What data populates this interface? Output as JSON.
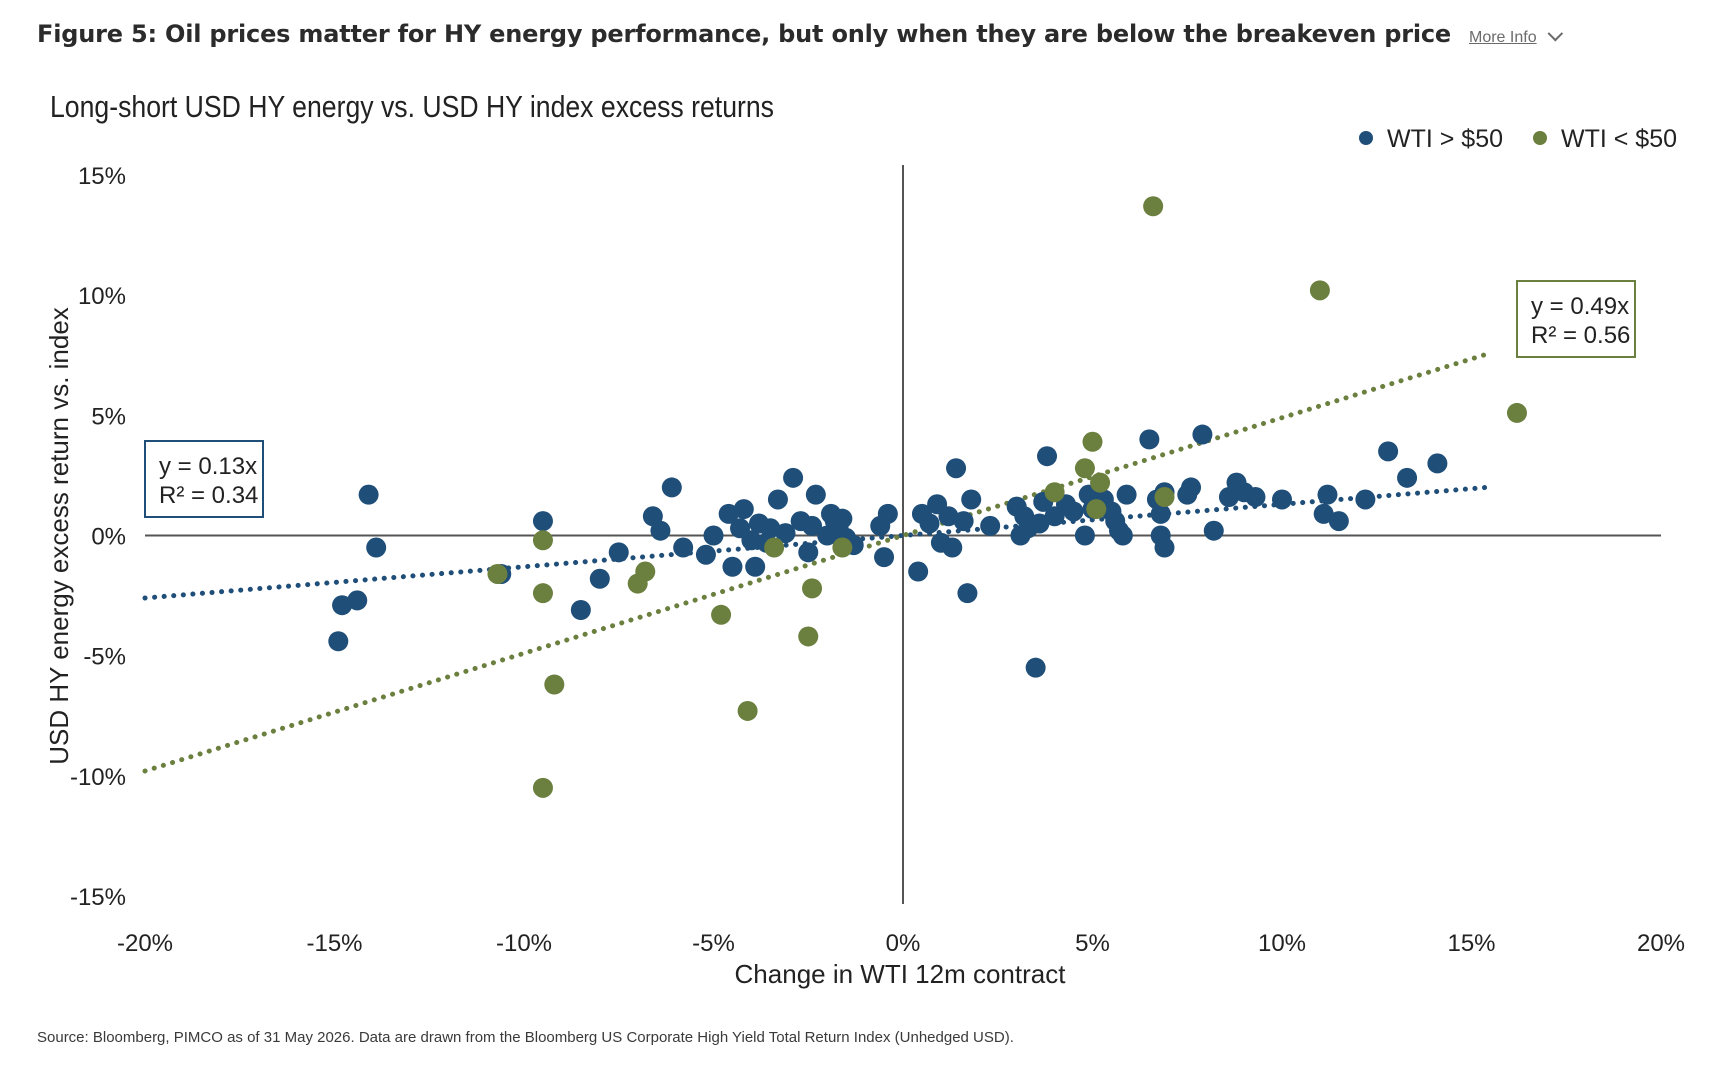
{
  "header": {
    "figure_title": "Figure 5: Oil prices matter for HY energy performance, but only when they are below the breakeven price",
    "more_info_label": "More Info",
    "chevron_icon": "chevron-down-icon"
  },
  "source_note": "Source: Bloomberg, PIMCO as of 31 May 2026. Data are drawn from the Bloomberg US Corporate High Yield Total Return Index (Unhedged USD).",
  "colors": {
    "above_50": "#1f4e79",
    "below_50": "#6b7f3e",
    "axis": "#555555"
  },
  "chart_data": {
    "type": "scatter",
    "title": "Long-short USD HY energy vs. USD HY index excess returns",
    "xlabel": "Change in WTI 12m contract",
    "ylabel": "USD HY energy excess return vs. index",
    "xlim": [
      -20,
      20
    ],
    "ylim": [
      -15,
      15
    ],
    "x_ticks": [
      -20,
      -15,
      -10,
      -5,
      0,
      5,
      10,
      15,
      20
    ],
    "y_ticks": [
      15,
      10,
      5,
      0,
      -5,
      -10,
      -15
    ],
    "x_tick_labels": [
      "-20%",
      "-15%",
      "-10%",
      "-5%",
      "0%",
      "5%",
      "10%",
      "15%",
      "20%"
    ],
    "y_tick_labels": [
      "15%",
      "10%",
      "5%",
      "0%",
      "-5%",
      "-10%",
      "-15%"
    ],
    "grid": false,
    "legend_position": "top-right",
    "series": [
      {
        "name": "WTI > $50",
        "color": "#1f4e79",
        "trendline": {
          "slope": 0.13,
          "x_range": [
            -20,
            15.5
          ]
        },
        "annotation": {
          "lines": [
            "y = 0.13x",
            "R² = 0.34"
          ]
        },
        "points": [
          [
            -14.1,
            1.7
          ],
          [
            -13.9,
            -0.5
          ],
          [
            -14.8,
            -2.9
          ],
          [
            -14.4,
            -2.7
          ],
          [
            -14.9,
            -4.4
          ],
          [
            -10.6,
            -1.6
          ],
          [
            -9.5,
            0.6
          ],
          [
            -8.5,
            -3.1
          ],
          [
            -8.0,
            -1.8
          ],
          [
            -7.5,
            -0.7
          ],
          [
            -6.6,
            0.8
          ],
          [
            -6.4,
            0.2
          ],
          [
            -6.1,
            2.0
          ],
          [
            -5.8,
            -0.5
          ],
          [
            -5.2,
            -0.8
          ],
          [
            -5.0,
            0.0
          ],
          [
            -4.6,
            0.9
          ],
          [
            -4.5,
            -1.3
          ],
          [
            -4.3,
            0.3
          ],
          [
            -4.2,
            1.1
          ],
          [
            -4.0,
            -0.2
          ],
          [
            -3.9,
            -1.3
          ],
          [
            -3.8,
            0.5
          ],
          [
            -3.6,
            -0.3
          ],
          [
            -3.5,
            0.3
          ],
          [
            -3.3,
            1.5
          ],
          [
            -3.1,
            0.1
          ],
          [
            -2.9,
            2.4
          ],
          [
            -2.7,
            0.6
          ],
          [
            -2.5,
            -0.7
          ],
          [
            -2.4,
            0.4
          ],
          [
            -2.3,
            1.7
          ],
          [
            -2.0,
            0.0
          ],
          [
            -1.9,
            0.9
          ],
          [
            -1.8,
            0.6
          ],
          [
            -1.7,
            0.3
          ],
          [
            -1.6,
            0.7
          ],
          [
            -1.5,
            -0.1
          ],
          [
            -1.3,
            -0.4
          ],
          [
            -0.6,
            0.4
          ],
          [
            -0.5,
            -0.9
          ],
          [
            -0.4,
            0.9
          ],
          [
            0.4,
            -1.5
          ],
          [
            0.5,
            0.9
          ],
          [
            0.7,
            0.5
          ],
          [
            0.9,
            1.3
          ],
          [
            1.0,
            -0.3
          ],
          [
            1.2,
            0.8
          ],
          [
            1.3,
            -0.5
          ],
          [
            1.4,
            2.8
          ],
          [
            1.6,
            0.6
          ],
          [
            1.7,
            -2.4
          ],
          [
            1.8,
            1.5
          ],
          [
            2.3,
            0.4
          ],
          [
            3.0,
            1.2
          ],
          [
            3.1,
            0.0
          ],
          [
            3.2,
            0.8
          ],
          [
            3.3,
            0.3
          ],
          [
            3.5,
            -5.5
          ],
          [
            3.6,
            0.5
          ],
          [
            3.7,
            1.4
          ],
          [
            3.8,
            3.3
          ],
          [
            4.0,
            0.8
          ],
          [
            4.3,
            1.3
          ],
          [
            4.5,
            1.0
          ],
          [
            4.8,
            0.0
          ],
          [
            4.9,
            1.7
          ],
          [
            5.0,
            1.1
          ],
          [
            5.3,
            1.5
          ],
          [
            5.5,
            1.0
          ],
          [
            5.6,
            0.6
          ],
          [
            5.7,
            0.2
          ],
          [
            5.8,
            0.0
          ],
          [
            5.9,
            1.7
          ],
          [
            6.5,
            4.0
          ],
          [
            6.7,
            1.5
          ],
          [
            6.8,
            0.9
          ],
          [
            6.8,
            0.0
          ],
          [
            6.9,
            -0.5
          ],
          [
            6.9,
            1.8
          ],
          [
            7.5,
            1.7
          ],
          [
            7.6,
            2.0
          ],
          [
            7.9,
            4.2
          ],
          [
            8.2,
            0.2
          ],
          [
            8.6,
            1.6
          ],
          [
            8.8,
            2.2
          ],
          [
            9.0,
            1.8
          ],
          [
            9.3,
            1.6
          ],
          [
            10.0,
            1.5
          ],
          [
            11.1,
            0.9
          ],
          [
            11.2,
            1.7
          ],
          [
            11.5,
            0.6
          ],
          [
            12.2,
            1.5
          ],
          [
            12.8,
            3.5
          ],
          [
            13.3,
            2.4
          ],
          [
            14.1,
            3.0
          ]
        ]
      },
      {
        "name": "WTI < $50",
        "color": "#6b7f3e",
        "trendline": {
          "slope": 0.49,
          "x_range": [
            -20,
            15.5
          ]
        },
        "annotation": {
          "lines": [
            "y = 0.49x",
            "R² = 0.56"
          ]
        },
        "points": [
          [
            -10.7,
            -1.6
          ],
          [
            -9.5,
            -0.2
          ],
          [
            -9.5,
            -2.4
          ],
          [
            -9.2,
            -6.2
          ],
          [
            -9.5,
            -10.5
          ],
          [
            -7.0,
            -2.0
          ],
          [
            -6.8,
            -1.5
          ],
          [
            -4.8,
            -3.3
          ],
          [
            -4.1,
            -7.3
          ],
          [
            -3.4,
            -0.5
          ],
          [
            -2.5,
            -4.2
          ],
          [
            -2.4,
            -2.2
          ],
          [
            -1.6,
            -0.5
          ],
          [
            4.0,
            1.8
          ],
          [
            4.8,
            2.8
          ],
          [
            5.0,
            3.9
          ],
          [
            5.1,
            1.1
          ],
          [
            5.2,
            2.2
          ],
          [
            6.6,
            13.7
          ],
          [
            6.9,
            1.6
          ],
          [
            11.0,
            10.2
          ],
          [
            16.2,
            5.1
          ]
        ]
      }
    ]
  }
}
